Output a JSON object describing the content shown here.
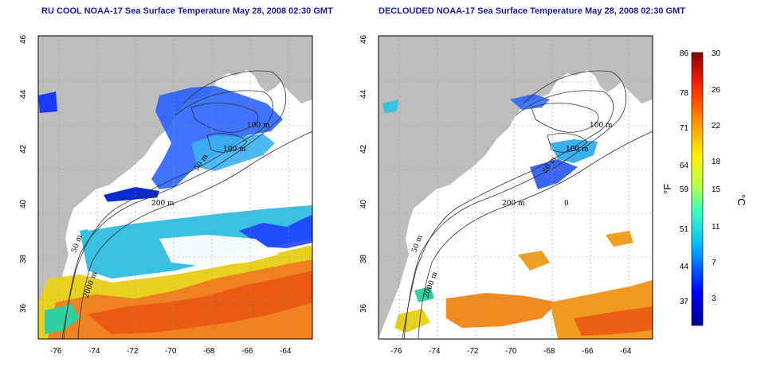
{
  "titles": {
    "left": "RU COOL NOAA-17 Sea Surface Temperature May 28, 2008 02:30 GMT",
    "right": "DECLOUDED NOAA-17 Sea Surface Temperature May 28, 2008 02:30 GMT"
  },
  "axes": {
    "lat_ticks": [
      "36",
      "38",
      "40",
      "42",
      "44",
      "46"
    ],
    "lon_ticks": [
      "-76",
      "-74",
      "-72",
      "-70",
      "-68",
      "-66",
      "-64"
    ]
  },
  "contour_labels": [
    "200 m",
    "100 m",
    "100 m",
    "50 m",
    "50 m",
    "2000 m",
    "0"
  ],
  "colorbar": {
    "f_ticks": [
      "86",
      "78",
      "71",
      "64",
      "59",
      "51",
      "44",
      "37"
    ],
    "c_ticks": [
      "30",
      "26",
      "22",
      "18",
      "15",
      "11",
      "7",
      "3"
    ],
    "f_unit": "°F",
    "c_unit": "°C"
  },
  "colors": {
    "land": "#bdbdbd",
    "cloud": "#ffffff",
    "title": "#1a1aa6"
  }
}
